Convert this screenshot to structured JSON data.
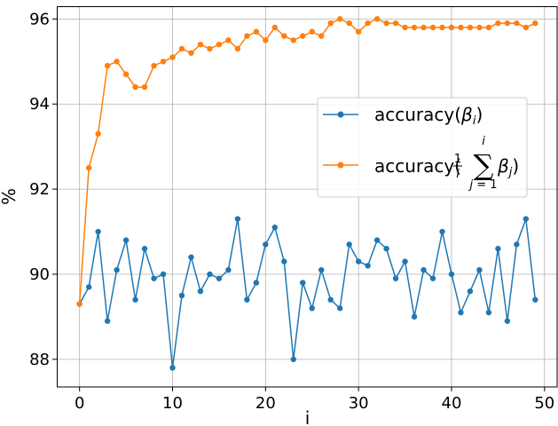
{
  "chart_data": {
    "type": "line",
    "xlabel": "i",
    "ylabel": "%",
    "xlim": [
      -2.45,
      51.45
    ],
    "ylim": [
      87.35,
      96.3
    ],
    "xticks": [
      0,
      10,
      20,
      30,
      40,
      50
    ],
    "yticks": [
      88,
      90,
      92,
      94,
      96
    ],
    "grid": true,
    "legend_position": "center-right",
    "x": [
      0,
      1,
      2,
      3,
      4,
      5,
      6,
      7,
      8,
      9,
      10,
      11,
      12,
      13,
      14,
      15,
      16,
      17,
      18,
      19,
      20,
      21,
      22,
      23,
      24,
      25,
      26,
      27,
      28,
      29,
      30,
      31,
      32,
      33,
      34,
      35,
      36,
      37,
      38,
      39,
      40,
      41,
      42,
      43,
      44,
      45,
      46,
      47,
      48,
      49
    ],
    "series": [
      {
        "name": "accuracy(β_i)",
        "color": "#1f77b4",
        "values": [
          89.3,
          89.7,
          91.0,
          88.9,
          90.1,
          90.8,
          89.4,
          90.6,
          89.9,
          90.0,
          87.8,
          89.5,
          90.4,
          89.6,
          90.0,
          89.9,
          90.1,
          91.3,
          89.4,
          89.8,
          90.7,
          91.1,
          90.3,
          88.0,
          89.8,
          89.2,
          90.1,
          89.4,
          89.2,
          90.7,
          90.3,
          90.2,
          90.8,
          90.6,
          89.9,
          90.3,
          89.0,
          90.1,
          89.9,
          91.0,
          90.0,
          89.1,
          89.6,
          90.1,
          89.1,
          90.6,
          88.9,
          90.7,
          91.3,
          89.4
        ]
      },
      {
        "name": "accuracy((1/i) Σ_{j=1}^{i} β_j)",
        "color": "#ff7f0e",
        "values": [
          89.3,
          92.5,
          93.3,
          94.9,
          95.0,
          94.7,
          94.4,
          94.4,
          94.9,
          95.0,
          95.1,
          95.3,
          95.2,
          95.4,
          95.3,
          95.4,
          95.5,
          95.3,
          95.6,
          95.7,
          95.5,
          95.8,
          95.6,
          95.5,
          95.6,
          95.7,
          95.6,
          95.9,
          96.0,
          95.9,
          95.7,
          95.9,
          96.0,
          95.9,
          95.9,
          95.8,
          95.8,
          95.8,
          95.8,
          95.8,
          95.8,
          95.8,
          95.8,
          95.8,
          95.8,
          95.9,
          95.9,
          95.9,
          95.8,
          95.9
        ]
      }
    ]
  }
}
